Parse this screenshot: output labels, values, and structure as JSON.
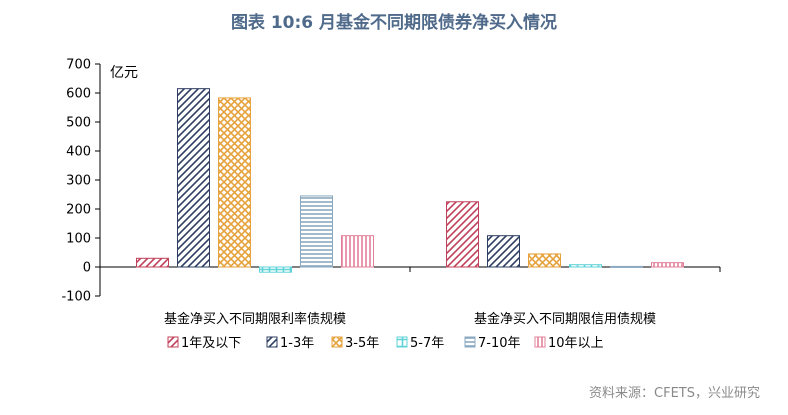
{
  "chart_data": {
    "type": "bar",
    "title": "图表 10:6 月基金不同期限债券净买入情况",
    "ylabel": "亿元",
    "ylim": [
      -100,
      700
    ],
    "yticks": [
      -100,
      0,
      100,
      200,
      300,
      400,
      500,
      600,
      700
    ],
    "categories": [
      "基金净买入不同期限利率债规模",
      "基金净买入不同期限信用债规模"
    ],
    "series": [
      {
        "name": "1年及以下",
        "values": [
          30,
          225
        ],
        "color": "#c0415a",
        "pattern": "diag-up"
      },
      {
        "name": "1-3年",
        "values": [
          615,
          108
        ],
        "color": "#2f3f63",
        "pattern": "diag-up"
      },
      {
        "name": "3-5年",
        "values": [
          583,
          45
        ],
        "color": "#e6a23c",
        "pattern": "cross"
      },
      {
        "name": "5-7年",
        "values": [
          -18,
          8
        ],
        "color": "#5fd3d8",
        "pattern": "grid"
      },
      {
        "name": "7-10年",
        "values": [
          245,
          2
        ],
        "color": "#8aa8c0",
        "pattern": "horiz"
      },
      {
        "name": "10年以上",
        "values": [
          108,
          15
        ],
        "color": "#e2809a",
        "pattern": "vert"
      }
    ],
    "grid": false,
    "legend_position": "bottom"
  },
  "source": "资料来源：CFETS，兴业研究"
}
